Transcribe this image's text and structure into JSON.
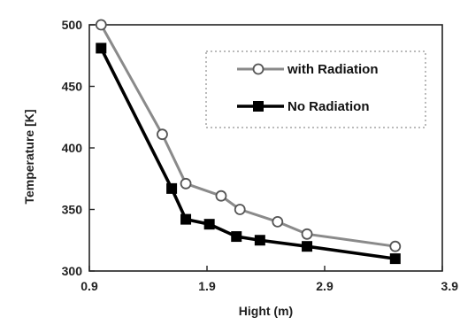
{
  "chart_data": {
    "type": "line",
    "title": "",
    "xlabel": "Hight (m)",
    "ylabel": "Temperature [K]",
    "xlim": [
      0.9,
      3.9
    ],
    "ylim": [
      300,
      500
    ],
    "xticks": [
      "0.9",
      "1.9",
      "2.9",
      "3.9"
    ],
    "yticks": [
      "300",
      "350",
      "400",
      "450",
      "500"
    ],
    "x_tick_values": [
      0.9,
      1.9,
      2.9,
      3.9
    ],
    "y_tick_values": [
      300,
      350,
      400,
      450,
      500
    ],
    "grid": false,
    "legend_position": "top-right",
    "series": [
      {
        "name": "with Radiation",
        "marker": "open-circle",
        "color": "#8a8a8a",
        "x": [
          1.0,
          1.52,
          1.72,
          2.02,
          2.18,
          2.5,
          2.75,
          3.5
        ],
        "y": [
          500,
          411,
          371,
          361,
          350,
          340,
          330,
          320
        ]
      },
      {
        "name": "No Radiation",
        "marker": "filled-square",
        "color": "#000000",
        "x": [
          1.0,
          1.6,
          1.72,
          1.92,
          2.15,
          2.35,
          2.75,
          3.5
        ],
        "y": [
          481,
          367,
          342,
          338,
          328,
          325,
          320,
          310
        ]
      }
    ]
  }
}
